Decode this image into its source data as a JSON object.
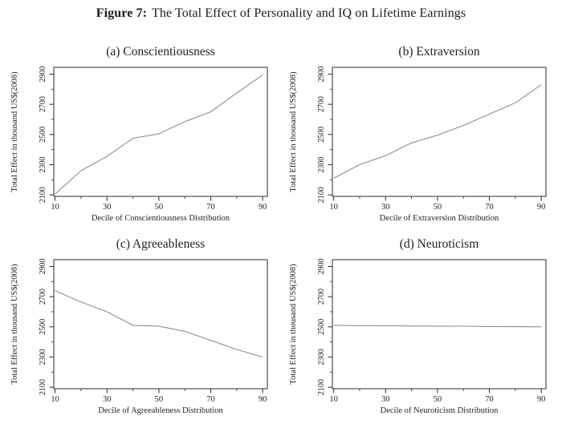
{
  "figure": {
    "label": "Figure 7:",
    "title": "The Total Effect of Personality and IQ on Lifetime Earnings"
  },
  "style": {
    "line_color": "#8f8f8f",
    "axis_color": "#2b2b2b",
    "text_color": "#1f1f26",
    "background": "#ffffff"
  },
  "chart_data": [
    {
      "type": "line",
      "panel_label": "(a)",
      "name": "Conscientiousness",
      "title": "(a) Conscientiousness",
      "xlabel": "Decile of Conscientiousness Distribution",
      "ylabel": "Total Effect in thousand US$(2008)",
      "x": [
        10,
        20,
        30,
        40,
        50,
        60,
        70,
        80,
        90
      ],
      "y": [
        2105,
        2260,
        2355,
        2475,
        2505,
        2585,
        2650,
        2775,
        2895
      ],
      "xlim": [
        9.5,
        91.8
      ],
      "ylim": [
        2090,
        2945
      ],
      "xticks_major": [
        10,
        30,
        50,
        70,
        90
      ],
      "xticks_minor": [
        20,
        40,
        60,
        80
      ],
      "yticks_major": [
        2100,
        2300,
        2500,
        2700,
        2900
      ],
      "yticks_minor": [
        2200,
        2400,
        2600,
        2800
      ],
      "grid": false,
      "legend": null
    },
    {
      "type": "line",
      "panel_label": "(b)",
      "name": "Extraversion",
      "title": "(b) Extraversion",
      "xlabel": "Decile of Extraversion Distribution",
      "ylabel": "Total Effect in thousand US$(2008)",
      "x": [
        10,
        20,
        30,
        40,
        50,
        60,
        70,
        80,
        90
      ],
      "y": [
        2210,
        2300,
        2360,
        2445,
        2495,
        2560,
        2635,
        2710,
        2830
      ],
      "xlim": [
        9.5,
        91.8
      ],
      "ylim": [
        2090,
        2945
      ],
      "xticks_major": [
        10,
        30,
        50,
        70,
        90
      ],
      "xticks_minor": [
        20,
        40,
        60,
        80
      ],
      "yticks_major": [
        2100,
        2300,
        2500,
        2700,
        2900
      ],
      "yticks_minor": [
        2200,
        2400,
        2600,
        2800
      ],
      "grid": false,
      "legend": null
    },
    {
      "type": "line",
      "panel_label": "(c)",
      "name": "Agreeableness",
      "title": "(c) Agreeableness",
      "xlabel": "Decile of Agreeableness Distribution",
      "ylabel": "Total Effect in thousand US$(2008)",
      "x": [
        10,
        20,
        30,
        40,
        50,
        60,
        70,
        80,
        90
      ],
      "y": [
        2740,
        2665,
        2600,
        2510,
        2505,
        2470,
        2410,
        2350,
        2300
      ],
      "xlim": [
        9.5,
        91.8
      ],
      "ylim": [
        2090,
        2945
      ],
      "xticks_major": [
        10,
        30,
        50,
        70,
        90
      ],
      "xticks_minor": [
        20,
        40,
        60,
        80
      ],
      "yticks_major": [
        2100,
        2300,
        2500,
        2700,
        2900
      ],
      "yticks_minor": [
        2200,
        2400,
        2600,
        2800
      ],
      "grid": false,
      "legend": null
    },
    {
      "type": "line",
      "panel_label": "(d)",
      "name": "Neuroticism",
      "title": "(d) Neuroticism",
      "xlabel": "Decile of Neuroticism Distribution",
      "ylabel": "Total Effect in thousand US$(2008)",
      "x": [
        10,
        20,
        30,
        40,
        50,
        60,
        70,
        80,
        90
      ],
      "y": [
        2510,
        2508,
        2507,
        2506,
        2505,
        2504,
        2502,
        2501,
        2500
      ],
      "xlim": [
        9.5,
        91.8
      ],
      "ylim": [
        2090,
        2945
      ],
      "xticks_major": [
        10,
        30,
        50,
        70,
        90
      ],
      "xticks_minor": [
        20,
        40,
        60,
        80
      ],
      "yticks_major": [
        2100,
        2300,
        2500,
        2700,
        2900
      ],
      "yticks_minor": [
        2200,
        2400,
        2600,
        2800
      ],
      "grid": false,
      "legend": null
    }
  ]
}
